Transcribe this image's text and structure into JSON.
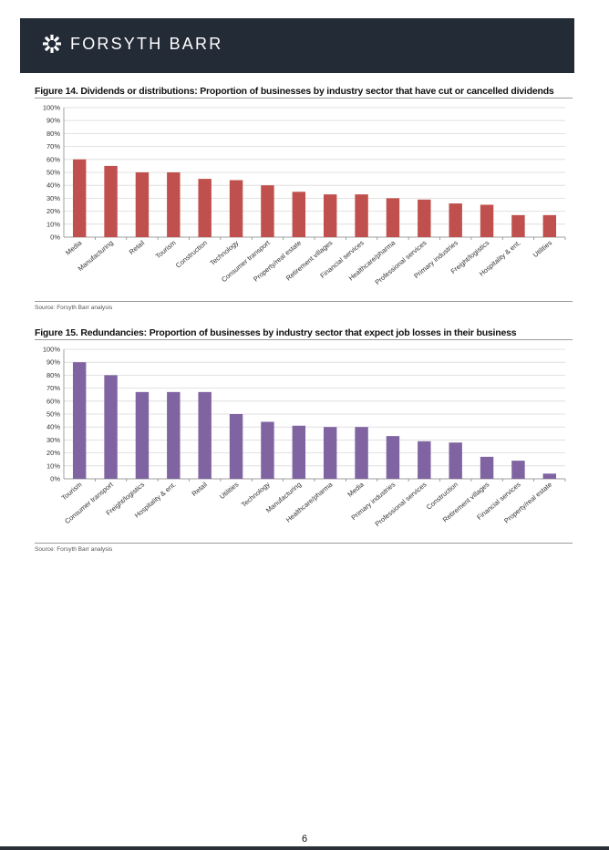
{
  "header": {
    "logo_text": "FORSYTH BARR",
    "logo_icon": "forsyth-barr-logo-icon",
    "background": "#232b37"
  },
  "figures": [
    {
      "title": "Figure 14. Dividends or distributions: Proportion of businesses by industry sector that have cut or cancelled dividends",
      "source": "Source: Forsyth Barr analysis"
    },
    {
      "title": "Figure 15. Redundancies: Proportion of businesses by industry sector that expect job losses in their business",
      "source": "Source: Forsyth Barr analysis"
    }
  ],
  "page_number": "6",
  "chart_data": [
    {
      "type": "bar",
      "title": "Figure 14. Dividends or distributions: Proportion of businesses by industry sector that have cut or cancelled dividends",
      "categories": [
        "Media",
        "Manufacturing",
        "Retail",
        "Tourism",
        "Construction",
        "Technology",
        "Consumer transport",
        "Property/real estate",
        "Retirement villages",
        "Financial services",
        "Healthcare/pharma",
        "Professional services",
        "Primary industries",
        "Freight/logistics",
        "Hospitality & ent.",
        "Utilities"
      ],
      "values": [
        60,
        55,
        50,
        50,
        45,
        44,
        40,
        35,
        33,
        33,
        30,
        29,
        26,
        25,
        17,
        17
      ],
      "yticks": [
        "0%",
        "10%",
        "20%",
        "30%",
        "40%",
        "50%",
        "60%",
        "70%",
        "80%",
        "90%",
        "100%"
      ],
      "ylim": [
        0,
        100
      ],
      "xlabel": "",
      "ylabel": "",
      "grid": true,
      "color": "#c0504d"
    },
    {
      "type": "bar",
      "title": "Figure 15. Redundancies: Proportion of businesses by industry sector that expect job losses in their business",
      "categories": [
        "Tourism",
        "Consumer transport",
        "Freight/logistics",
        "Hospitality & ent.",
        "Retail",
        "Utilities",
        "Technology",
        "Manufacturing",
        "Healthcare/pharma",
        "Media",
        "Primary industries",
        "Professional services",
        "Construction",
        "Retirement villages",
        "Financial services",
        "Property/real estate"
      ],
      "values": [
        90,
        80,
        67,
        67,
        67,
        50,
        44,
        41,
        40,
        40,
        33,
        29,
        28,
        17,
        14,
        4
      ],
      "yticks": [
        "0%",
        "10%",
        "20%",
        "30%",
        "40%",
        "50%",
        "60%",
        "70%",
        "80%",
        "90%",
        "100%"
      ],
      "ylim": [
        0,
        100
      ],
      "xlabel": "",
      "ylabel": "",
      "grid": true,
      "color": "#8064a2"
    }
  ]
}
